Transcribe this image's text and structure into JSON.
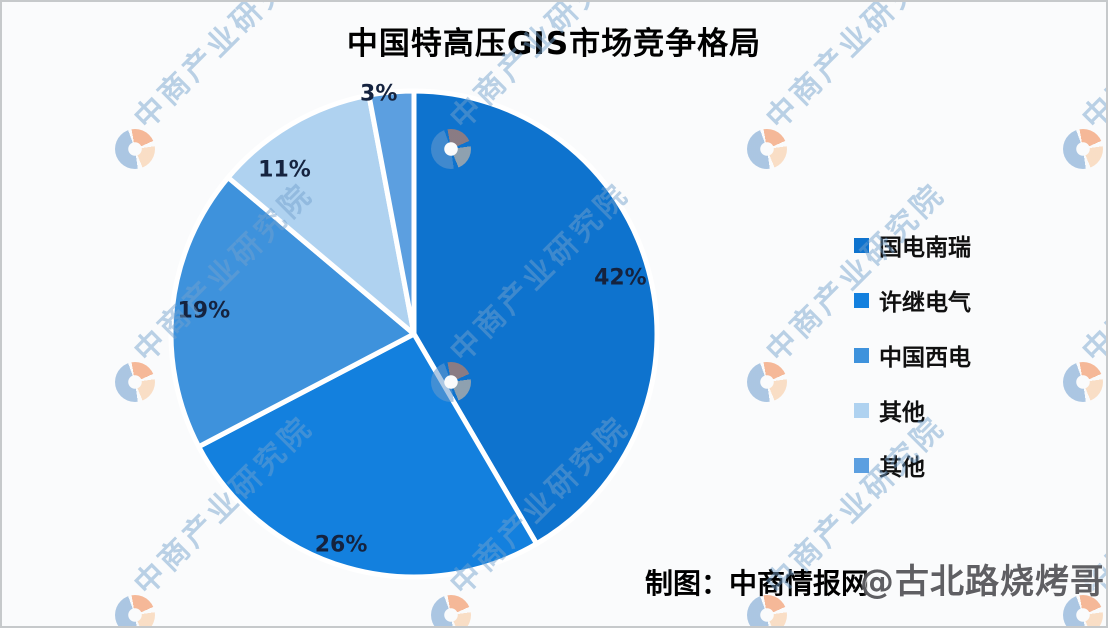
{
  "title": "中国特高压GIS市场竞争格局",
  "chart_data": {
    "type": "pie",
    "title": "中国特高压GIS市场竞争格局",
    "categories": [
      "国电南瑞",
      "许继电气",
      "中国西电",
      "其他",
      "其他"
    ],
    "values": [
      42,
      26,
      19,
      11,
      3
    ],
    "value_labels": [
      "42%",
      "26%",
      "19%",
      "11%",
      "3%"
    ],
    "colors": [
      "#0E73CE",
      "#1380DE",
      "#3E92DC",
      "#AFD2F0",
      "#5C9FE0"
    ],
    "start_angle_deg": 0,
    "direction": "clockwise",
    "legend_position": "right",
    "label_color": "#15233F",
    "separator_color": "#FFFFFF"
  },
  "attribution": {
    "text": "制图：中商情报网"
  },
  "watermark": {
    "diagonal_text": "中商产业研究院",
    "logo_name": "askci-circle-logo",
    "account_overlay": "@古北路烧烤哥",
    "tint_color": "#74A0CD"
  }
}
